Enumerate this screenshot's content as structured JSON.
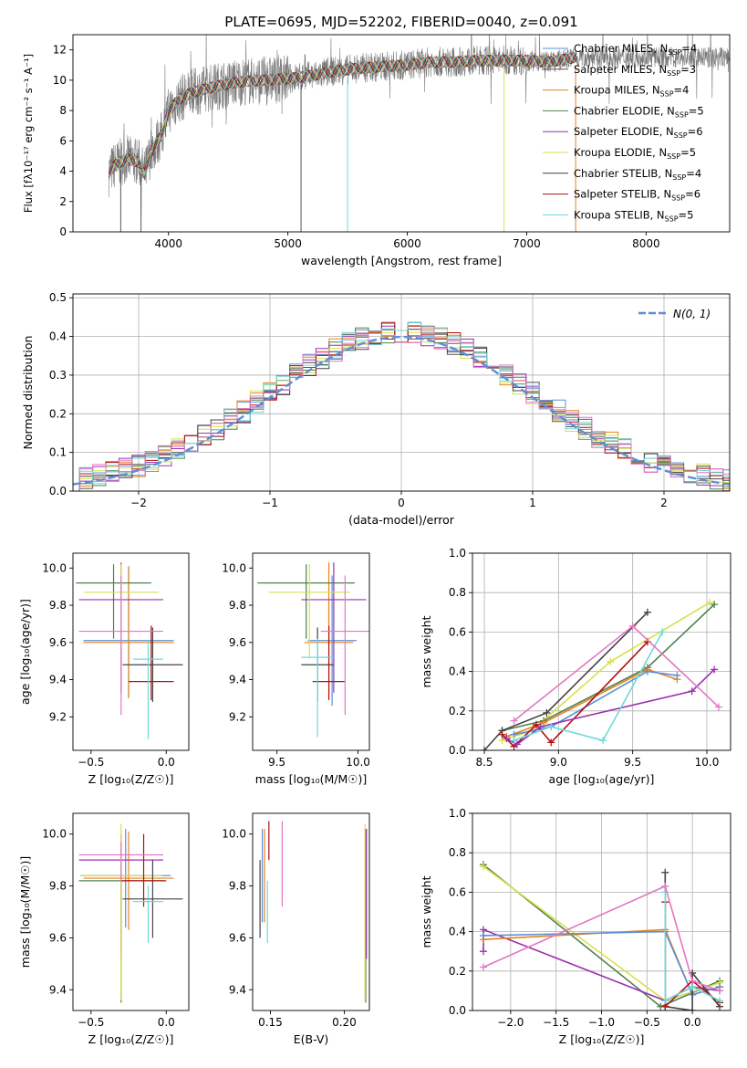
{
  "figure": {
    "title": "PLATE=0695, MJD=52202, FIBERID=0040, z=0.091"
  },
  "palette": [
    "#5b8fd6",
    "#555555",
    "#e8821e",
    "#4f7f4f",
    "#9b30b0",
    "#d8e04a",
    "#444444",
    "#b01010",
    "#70d8d8",
    "#e377c2",
    "#7a7a7a"
  ],
  "chart_data": [
    {
      "id": "spectrum",
      "type": "line",
      "title": "PLATE=0695, MJD=52202, FIBERID=0040, z=0.091",
      "xlabel": "wavelength [Angstrom, rest frame]",
      "ylabel": "Flux [fλ10⁻¹⁷ erg cm⁻² s⁻¹ A⁻¹]",
      "xlim": [
        3200,
        8700
      ],
      "ylim": [
        0,
        13
      ],
      "xticks": [
        4000,
        5000,
        6000,
        7000,
        8000
      ],
      "yticks": [
        0,
        2,
        4,
        6,
        8,
        10,
        12
      ],
      "grid": false,
      "legend_position": "upper right",
      "continuum": {
        "x": [
          3500,
          3550,
          3650,
          3750,
          3800,
          3850,
          3950,
          4000,
          4100,
          4200,
          4400,
          4600,
          4800,
          5000,
          5200,
          5400,
          5600,
          5800,
          6000,
          6200,
          6400,
          6600,
          6800,
          7000,
          7200,
          7400
        ],
        "y": [
          3.9,
          4.4,
          4.8,
          4.6,
          3.8,
          5.2,
          6.5,
          8.0,
          8.8,
          9.2,
          9.6,
          9.9,
          10.0,
          10.1,
          10.3,
          10.6,
          10.8,
          10.9,
          11.0,
          11.2,
          11.2,
          11.3,
          11.3,
          11.3,
          11.2,
          11.5
        ]
      },
      "legend": [
        {
          "label": "Chabrier MILES, N",
          "sub": "SSP",
          "n": "=4",
          "color": "#5b8fd6"
        },
        {
          "label": "Salpeter MILES, N",
          "sub": "SSP",
          "n": "=3",
          "color": "#555555"
        },
        {
          "label": "Kroupa MILES, N",
          "sub": "SSP",
          "n": "=4",
          "color": "#e8821e"
        },
        {
          "label": "Chabrier ELODIE, N",
          "sub": "SSP",
          "n": "=5",
          "color": "#4f7f4f"
        },
        {
          "label": "Salpeter ELODIE, N",
          "sub": "SSP",
          "n": "=6",
          "color": "#9b30b0"
        },
        {
          "label": "Kroupa ELODIE, N",
          "sub": "SSP",
          "n": "=5",
          "color": "#d8e04a"
        },
        {
          "label": "Chabrier STELIB, N",
          "sub": "SSP",
          "n": "=4",
          "color": "#444444"
        },
        {
          "label": "Salpeter STELIB, N",
          "sub": "SSP",
          "n": "=6",
          "color": "#b01010"
        },
        {
          "label": "Kroupa STELIB, N",
          "sub": "SSP",
          "n": "=5",
          "color": "#70d8d8"
        }
      ]
    },
    {
      "id": "residuals",
      "type": "line",
      "xlabel": "(data-model)/error",
      "ylabel": "Normed distribution",
      "xlim": [
        -2.5,
        2.5
      ],
      "ylim": [
        0,
        0.51
      ],
      "xticks": [
        -2,
        -1,
        0,
        1,
        2
      ],
      "yticks": [
        0.0,
        0.1,
        0.2,
        0.3,
        0.4,
        0.5
      ],
      "grid": true,
      "legend": [
        {
          "label": "N(0, 1)",
          "style": "dashed",
          "color": "#5b8fd6"
        }
      ],
      "gaussian": {
        "mean": 0,
        "sigma": 1
      }
    },
    {
      "id": "age_vs_Z",
      "type": "scatter",
      "xlabel": "Z [log₁₀(Z/Z☉)]",
      "ylabel": "age  [log₁₀(age/yr)]",
      "xlim": [
        -0.62,
        0.15
      ],
      "ylim": [
        9.02,
        10.08
      ],
      "xticks": [
        -0.5,
        0.0
      ],
      "yticks": [
        9.2,
        9.4,
        9.6,
        9.8,
        10.0
      ],
      "grid": false,
      "points": [
        {
          "x": -0.25,
          "y": 9.61,
          "xerr": 0.3,
          "yerr": [
            0.3,
            0.4
          ],
          "color": "#5b8fd6"
        },
        {
          "x": -0.25,
          "y": 9.6,
          "xerr": 0.3,
          "yerr": [
            0.3,
            0.4
          ],
          "color": "#e8821e"
        },
        {
          "x": -0.35,
          "y": 9.92,
          "xerr": 0.25,
          "yerr": [
            0.3,
            0.1
          ],
          "color": "#4f7f4f"
        },
        {
          "x": -0.3,
          "y": 9.83,
          "xerr": 0.28,
          "yerr": [
            0.5,
            0.2
          ],
          "color": "#9b30b0"
        },
        {
          "x": -0.3,
          "y": 9.87,
          "xerr": 0.25,
          "yerr": [
            0.3,
            0.15
          ],
          "color": "#d8e04a"
        },
        {
          "x": -0.09,
          "y": 9.48,
          "xerr": 0.2,
          "yerr": [
            0.2,
            0.2
          ],
          "color": "#444444"
        },
        {
          "x": -0.1,
          "y": 9.39,
          "xerr": 0.15,
          "yerr": [
            0.1,
            0.3
          ],
          "color": "#b01010"
        },
        {
          "x": -0.12,
          "y": 9.51,
          "xerr": 0.1,
          "yerr": [
            0.43,
            0.1
          ],
          "color": "#70d8d8"
        },
        {
          "x": -0.3,
          "y": 9.66,
          "xerr": 0.28,
          "yerr": [
            0.45,
            0.3
          ],
          "color": "#e377c2"
        }
      ]
    },
    {
      "id": "age_vs_mass",
      "type": "scatter",
      "xlabel": "mass [log₁₀(M/M☉)]",
      "ylabel": "",
      "xlim": [
        9.35,
        10.07
      ],
      "ylim": [
        9.02,
        10.08
      ],
      "xticks": [
        9.5,
        10.0
      ],
      "yticks": [
        9.2,
        9.4,
        9.6,
        9.8,
        10.0
      ],
      "grid": false,
      "points": [
        {
          "x": 9.84,
          "y": 9.61,
          "xerr": 0.15,
          "yerr": [
            0.35,
            0.35
          ],
          "color": "#5b8fd6"
        },
        {
          "x": 9.82,
          "y": 9.6,
          "xerr": 0.15,
          "yerr": [
            0.3,
            0.43
          ],
          "color": "#e8821e"
        },
        {
          "x": 9.68,
          "y": 9.92,
          "xerr": 0.3,
          "yerr": [
            0.3,
            0.1
          ],
          "color": "#4f7f4f"
        },
        {
          "x": 9.85,
          "y": 9.83,
          "xerr": 0.2,
          "yerr": [
            0.5,
            0.2
          ],
          "color": "#9b30b0"
        },
        {
          "x": 9.7,
          "y": 9.87,
          "xerr": 0.25,
          "yerr": [
            0.35,
            0.15
          ],
          "color": "#d8e04a"
        },
        {
          "x": 9.75,
          "y": 9.48,
          "xerr": 0.1,
          "yerr": [
            0.2,
            0.2
          ],
          "color": "#444444"
        },
        {
          "x": 9.82,
          "y": 9.39,
          "xerr": 0.1,
          "yerr": [
            0.1,
            0.3
          ],
          "color": "#b01010"
        },
        {
          "x": 9.75,
          "y": 9.52,
          "xerr": 0.1,
          "yerr": [
            0.43,
            0.1
          ],
          "color": "#70d8d8"
        },
        {
          "x": 9.92,
          "y": 9.66,
          "xerr": 0.15,
          "yerr": [
            0.45,
            0.3
          ],
          "color": "#e377c2"
        }
      ]
    },
    {
      "id": "massweight_vs_age",
      "type": "line",
      "xlabel": "age  [log₁₀(age/yr)]",
      "ylabel": "mass weight",
      "xlim": [
        8.42,
        10.16
      ],
      "ylim": [
        0,
        1.0
      ],
      "xticks": [
        8.5,
        9.0,
        9.5,
        10.0
      ],
      "yticks": [
        0.0,
        0.2,
        0.4,
        0.6,
        0.8,
        1.0
      ],
      "grid": true,
      "series": [
        {
          "color": "#d8e04a",
          "x": [
            8.62,
            8.82,
            9.35,
            10.02
          ],
          "y": [
            0.05,
            0.1,
            0.45,
            0.75
          ]
        },
        {
          "color": "#4f7f4f",
          "x": [
            8.62,
            8.9,
            9.6,
            10.05
          ],
          "y": [
            0.1,
            0.15,
            0.42,
            0.74
          ]
        },
        {
          "color": "#444444",
          "x": [
            8.5,
            8.62,
            8.92,
            9.6
          ],
          "y": [
            0.0,
            0.1,
            0.19,
            0.7
          ]
        },
        {
          "color": "#e8821e",
          "x": [
            8.65,
            8.9,
            9.6,
            9.8
          ],
          "y": [
            0.07,
            0.14,
            0.41,
            0.36
          ]
        },
        {
          "color": "#5b8fd6",
          "x": [
            8.7,
            8.95,
            9.6,
            9.8
          ],
          "y": [
            0.08,
            0.12,
            0.4,
            0.38
          ]
        },
        {
          "color": "#b01010",
          "x": [
            8.62,
            8.7,
            8.85,
            8.95,
            9.6
          ],
          "y": [
            0.08,
            0.02,
            0.13,
            0.04,
            0.55
          ]
        },
        {
          "color": "#9b30b0",
          "x": [
            8.65,
            8.72,
            8.88,
            9.9,
            10.05
          ],
          "y": [
            0.06,
            0.03,
            0.12,
            0.3,
            0.41
          ]
        },
        {
          "color": "#70d8d8",
          "x": [
            8.7,
            8.95,
            9.3,
            9.7
          ],
          "y": [
            0.05,
            0.12,
            0.05,
            0.6
          ]
        },
        {
          "color": "#e377c2",
          "x": [
            8.7,
            9.5,
            10.08
          ],
          "y": [
            0.15,
            0.63,
            0.22
          ]
        }
      ]
    },
    {
      "id": "mass_vs_Z",
      "type": "scatter",
      "xlabel": "Z [log₁₀(Z/Z☉)]",
      "ylabel": "mass [log₁₀(M/M☉)]",
      "xlim": [
        -0.62,
        0.15
      ],
      "ylim": [
        9.32,
        10.08
      ],
      "xticks": [
        -0.5,
        0.0
      ],
      "yticks": [
        9.4,
        9.6,
        9.8,
        10.0
      ],
      "grid": false,
      "points": [
        {
          "x": -0.27,
          "y": 9.84,
          "xerr": 0.3,
          "yerr": [
            0.2,
            0.18
          ],
          "color": "#5b8fd6"
        },
        {
          "x": -0.25,
          "y": 9.83,
          "xerr": 0.3,
          "yerr": [
            0.2,
            0.18
          ],
          "color": "#e8821e"
        },
        {
          "x": -0.3,
          "y": 9.82,
          "xerr": 0.28,
          "yerr": [
            0.47,
            0.05
          ],
          "color": "#4f7f4f"
        },
        {
          "x": -0.3,
          "y": 9.9,
          "xerr": 0.28,
          "yerr": [
            0.38,
            0.1
          ],
          "color": "#9b30b0"
        },
        {
          "x": -0.3,
          "y": 9.84,
          "xerr": 0.27,
          "yerr": [
            0.48,
            0.2
          ],
          "color": "#d8e04a"
        },
        {
          "x": -0.09,
          "y": 9.75,
          "xerr": 0.2,
          "yerr": [
            0.15,
            0.15
          ],
          "color": "#444444"
        },
        {
          "x": -0.15,
          "y": 9.82,
          "xerr": 0.15,
          "yerr": [
            0.1,
            0.18
          ],
          "color": "#b01010"
        },
        {
          "x": -0.12,
          "y": 9.74,
          "xerr": 0.1,
          "yerr": [
            0.16,
            0.06
          ],
          "color": "#70d8d8"
        },
        {
          "x": -0.3,
          "y": 9.92,
          "xerr": 0.28,
          "yerr": [
            0.1,
            0.05
          ],
          "color": "#e377c2"
        }
      ]
    },
    {
      "id": "mass_vs_ebv",
      "type": "scatter",
      "xlabel": "E(B-V)",
      "ylabel": "",
      "xlim": [
        0.138,
        0.217
      ],
      "ylim": [
        9.32,
        10.08
      ],
      "xticks": [
        0.15,
        0.2
      ],
      "yticks": [
        9.4,
        9.6,
        9.8,
        10.0
      ],
      "grid": false,
      "points": [
        {
          "x": 0.1445,
          "y": 9.84,
          "yerr": [
            0.18,
            0.18
          ],
          "color": "#5b8fd6"
        },
        {
          "x": 0.146,
          "y": 9.84,
          "yerr": [
            0.18,
            0.18
          ],
          "color": "#e8821e"
        },
        {
          "x": 0.143,
          "y": 9.75,
          "yerr": [
            0.15,
            0.15
          ],
          "color": "#444444"
        },
        {
          "x": 0.149,
          "y": 9.95,
          "yerr": [
            0.05,
            0.1
          ],
          "color": "#b01010"
        },
        {
          "x": 0.148,
          "y": 9.74,
          "yerr": [
            0.16,
            0.08
          ],
          "color": "#70d8d8"
        },
        {
          "x": 0.158,
          "y": 9.92,
          "yerr": [
            0.2,
            0.13
          ],
          "color": "#e377c2"
        },
        {
          "x": 0.2145,
          "y": 9.82,
          "yerr": [
            0.47,
            0.2
          ],
          "color": "#4f7f4f"
        },
        {
          "x": 0.215,
          "y": 9.9,
          "yerr": [
            0.38,
            0.12
          ],
          "color": "#9b30b0"
        },
        {
          "x": 0.214,
          "y": 9.84,
          "yerr": [
            0.48,
            0.2
          ],
          "color": "#d8e04a"
        }
      ]
    },
    {
      "id": "massweight_vs_Z",
      "type": "line",
      "xlabel": "Z [log₁₀(Z/Z☉)]",
      "ylabel": "mass weight",
      "xlim": [
        -2.42,
        0.42
      ],
      "ylim": [
        0,
        1.0
      ],
      "xticks": [
        -2.0,
        -1.5,
        -1.0,
        -0.5,
        0.0
      ],
      "yticks": [
        0.0,
        0.2,
        0.4,
        0.6,
        0.8,
        1.0
      ],
      "grid": true,
      "series": [
        {
          "color": "#4f7f4f",
          "x": [
            -2.3,
            -0.35,
            0.3
          ],
          "y": [
            0.74,
            0.02,
            0.15
          ]
        },
        {
          "color": "#d8e04a",
          "x": [
            -2.3,
            -0.3,
            0.3
          ],
          "y": [
            0.73,
            0.05,
            0.14
          ]
        },
        {
          "color": "#9b30b0",
          "x": [
            -2.3,
            -2.3,
            -0.3,
            0.0,
            0.3
          ],
          "y": [
            0.3,
            0.41,
            0.05,
            0.12,
            0.1
          ]
        },
        {
          "color": "#e8821e",
          "x": [
            -2.3,
            -0.3,
            0.0,
            0.3
          ],
          "y": [
            0.36,
            0.41,
            0.08,
            0.12
          ]
        },
        {
          "color": "#5b8fd6",
          "x": [
            -2.3,
            -0.3,
            0.0,
            0.3
          ],
          "y": [
            0.38,
            0.4,
            0.08,
            0.12
          ]
        },
        {
          "color": "#444444",
          "x": [
            -0.3,
            -0.3,
            0.0,
            0.0,
            0.3
          ],
          "y": [
            0.7,
            0.02,
            0.0,
            0.19,
            0.02
          ]
        },
        {
          "color": "#b01010",
          "x": [
            -0.3,
            -0.3,
            0.0,
            0.3
          ],
          "y": [
            0.55,
            0.02,
            0.15,
            0.04
          ]
        },
        {
          "color": "#70d8d8",
          "x": [
            -0.3,
            -0.3,
            0.0,
            0.3
          ],
          "y": [
            0.6,
            0.05,
            0.12,
            0.05
          ]
        },
        {
          "color": "#e377c2",
          "x": [
            -2.3,
            -0.3,
            0.0,
            0.3
          ],
          "y": [
            0.22,
            0.63,
            0.15,
            0.1
          ]
        }
      ]
    }
  ]
}
